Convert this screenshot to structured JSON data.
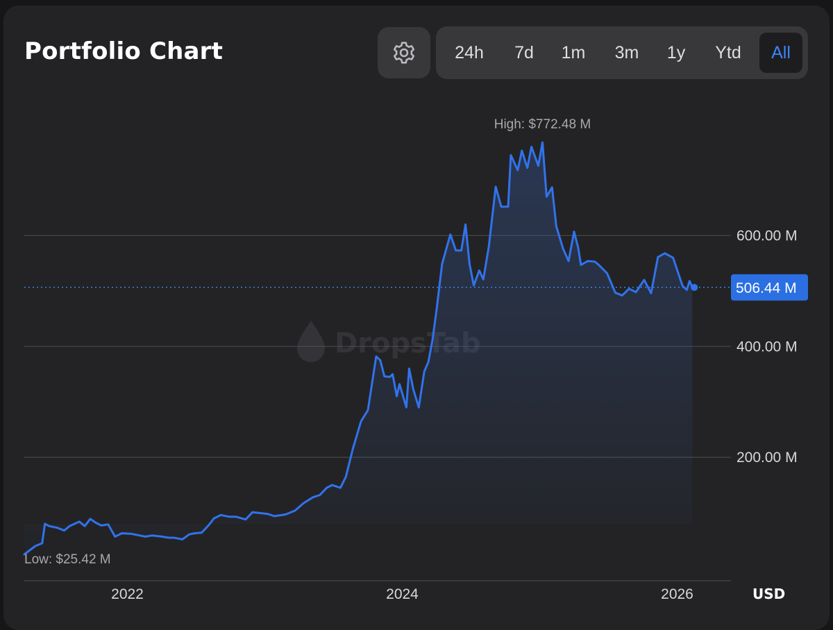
{
  "header": {
    "title": "Portfolio Chart",
    "settings_icon": "gear-icon",
    "ranges": [
      "24h",
      "7d",
      "1m",
      "3m",
      "1y",
      "Ytd",
      "All"
    ],
    "active_range": "All"
  },
  "colors": {
    "line": "#3173ec",
    "accent": "#3d86f7",
    "badge_bg": "#2b6fe2",
    "background": "#232325"
  },
  "watermark": "DropsTab",
  "chart_data": {
    "type": "area",
    "ylim": [
      0,
      800
    ],
    "unit": "USD",
    "y_tick_values": [
      200,
      400,
      600
    ],
    "y_tick_labels": [
      "200.00 M",
      "400.00 M",
      "600.00 M"
    ],
    "x_tick_labels": [
      {
        "label": "2022",
        "t": 2021.75
      },
      {
        "label": "2024",
        "t": 2023.75
      },
      {
        "label": "2026",
        "t": 2025.75
      }
    ],
    "high_label": "High: $772.48 M",
    "low_label": "Low: $25.42 M",
    "current_label": "506.44 M",
    "current_value": 506.44,
    "series": [
      {
        "t": [
          2021.0,
          2021.08,
          2021.13,
          2021.15,
          2021.18,
          2021.24,
          2021.29,
          2021.33,
          2021.4,
          2021.44,
          2021.48,
          2021.52,
          2021.56,
          2021.61,
          2021.66,
          2021.71,
          2021.78,
          2021.84,
          2021.88,
          2021.93,
          2022.0,
          2022.05,
          2022.09,
          2022.15,
          2022.2,
          2022.24,
          2022.29,
          2022.34,
          2022.38,
          2022.43,
          2022.49,
          2022.54,
          2022.61,
          2022.66,
          2022.7,
          2022.77,
          2022.82,
          2022.9,
          2022.97,
          2023.03,
          2023.1,
          2023.15,
          2023.2,
          2023.24,
          2023.3,
          2023.34,
          2023.39,
          2023.45,
          2023.5,
          2023.56,
          2023.59,
          2023.62,
          2023.66,
          2023.68,
          2023.71,
          2023.73,
          2023.78,
          2023.8,
          2023.83,
          2023.87,
          2023.91,
          2023.94,
          2023.97,
          2024.0,
          2024.04,
          2024.1,
          2024.14,
          2024.18,
          2024.21,
          2024.24,
          2024.27,
          2024.31,
          2024.34,
          2024.38,
          2024.43,
          2024.47,
          2024.52,
          2024.54,
          2024.59,
          2024.62,
          2024.66,
          2024.69,
          2024.74,
          2024.77,
          2024.8,
          2024.84,
          2024.87,
          2024.92,
          2024.96,
          2025.0,
          2025.03,
          2025.05,
          2025.1,
          2025.15,
          2025.18,
          2025.24,
          2025.3,
          2025.35,
          2025.4,
          2025.45,
          2025.51,
          2025.56,
          2025.61,
          2025.66,
          2025.72,
          2025.77,
          2025.79,
          2025.82,
          2025.84,
          2025.86
        ],
        "values": [
          25,
          40,
          45,
          80,
          76,
          73,
          68,
          76,
          84,
          76,
          89,
          82,
          77,
          79,
          57,
          63,
          62,
          59,
          57,
          59,
          57,
          55,
          55,
          52,
          61,
          63,
          64,
          77,
          90,
          96,
          93,
          93,
          88,
          101,
          100,
          98,
          94,
          97,
          104,
          117,
          128,
          132,
          145,
          150,
          145,
          165,
          215,
          265,
          285,
          382,
          375,
          346,
          345,
          350,
          310,
          332,
          290,
          360,
          323,
          290,
          355,
          372,
          412,
          467,
          549,
          602,
          573,
          573,
          620,
          548,
          510,
          537,
          521,
          580,
          688,
          652,
          652,
          745,
          718,
          753,
          722,
          760,
          726,
          768,
          670,
          687,
          617,
          576,
          554,
          607,
          578,
          547,
          554,
          553,
          547,
          532,
          497,
          492,
          504,
          498,
          520,
          496,
          561,
          568,
          560,
          523,
          509,
          502,
          518,
          507
        ]
      }
    ]
  }
}
